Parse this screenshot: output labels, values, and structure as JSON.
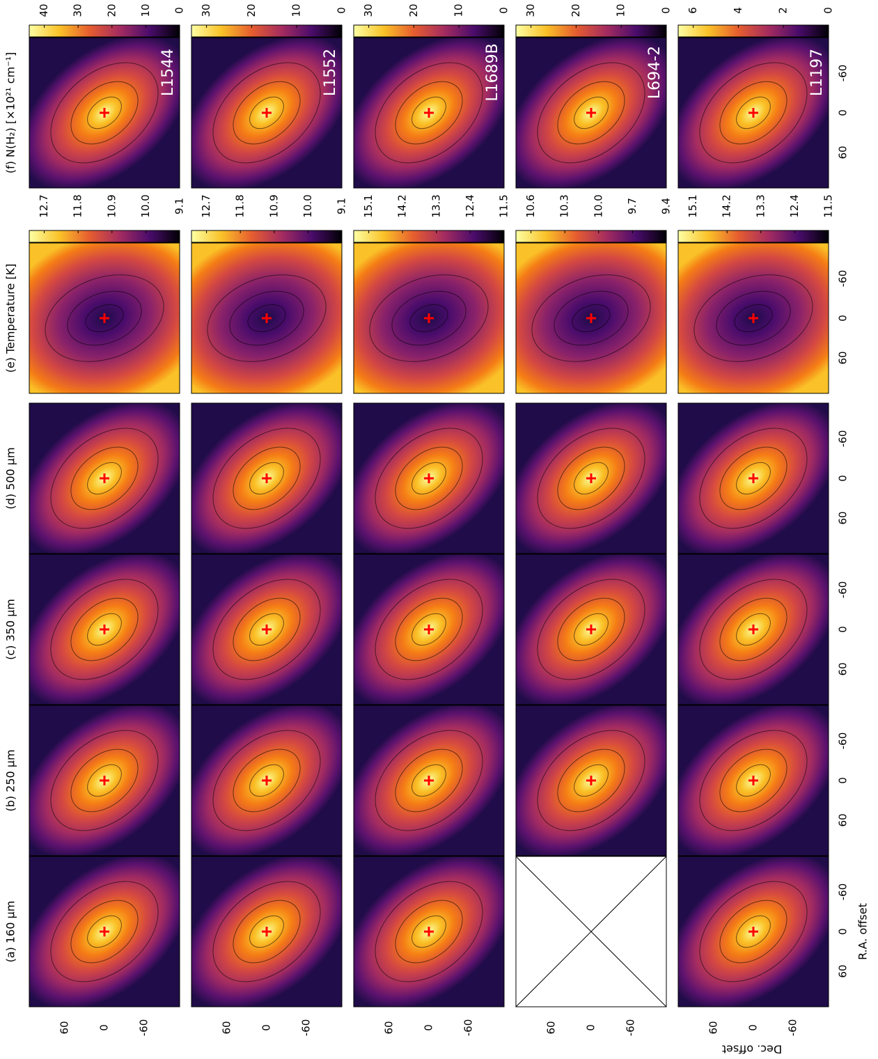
{
  "columns": [
    {
      "label": "(a) 160 μm"
    },
    {
      "label": "(b) 250 μm"
    },
    {
      "label": "(c) 350 μm"
    },
    {
      "label": "(d) 500 μm"
    },
    {
      "label": "(e) Temperature [K]"
    },
    {
      "label": "(f) N(H₂) [×10²¹ cm⁻¹]"
    }
  ],
  "sources": [
    {
      "name": "L1544",
      "temperature_ticks": [
        "12.7",
        "11.8",
        "10.9",
        "10.0",
        "9.1"
      ],
      "column_density_ticks": [
        "40",
        "30",
        "20",
        "10",
        "0"
      ]
    },
    {
      "name": "L1552",
      "temperature_ticks": [
        "12.7",
        "11.8",
        "10.9",
        "10.0",
        "9.1"
      ],
      "column_density_ticks": [
        "30",
        "20",
        "10",
        "0"
      ]
    },
    {
      "name": "L1689B",
      "temperature_ticks": [
        "15.1",
        "14.2",
        "13.3",
        "12.4",
        "11.5"
      ],
      "column_density_ticks": [
        "30",
        "20",
        "10",
        "0"
      ]
    },
    {
      "name": "L694-2",
      "temperature_ticks": [
        "10.6",
        "10.3",
        "10.0",
        "9.7",
        "9.4"
      ],
      "column_density_ticks": [
        "30",
        "20",
        "10",
        "0"
      ]
    },
    {
      "name": "L1197",
      "temperature_ticks": [
        "15.1",
        "14.2",
        "13.3",
        "12.4",
        "11.5"
      ],
      "column_density_ticks": [
        "6",
        "4",
        "2",
        "0"
      ]
    }
  ],
  "ra_ticks": [
    "60",
    "0",
    "-60"
  ],
  "dec_ticks": [
    "60",
    "0",
    "-60"
  ],
  "ra_label": "R.A. offset",
  "dec_label": "Dec. offset"
}
